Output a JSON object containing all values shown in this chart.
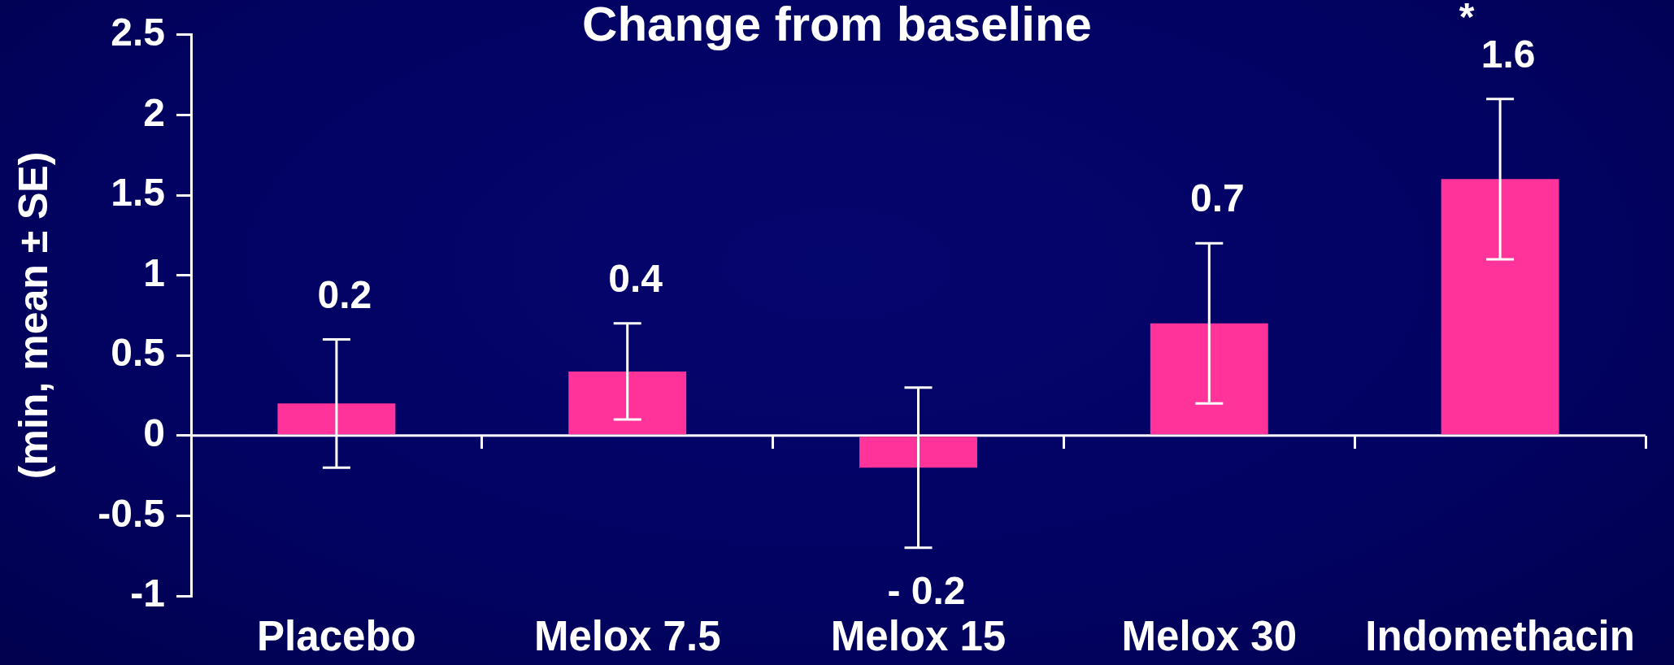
{
  "chart_data": {
    "type": "bar",
    "title": "Change from baseline",
    "ylabel": "(min, mean ± SE)",
    "categories": [
      "Placebo",
      "Melox 7.5",
      "Melox 15",
      "Melox 30",
      "Indomethacin"
    ],
    "values": [
      0.2,
      0.4,
      -0.2,
      0.7,
      1.6
    ],
    "errors": [
      0.4,
      0.3,
      0.5,
      0.5,
      0.5
    ],
    "value_labels": [
      "0.2",
      "0.4",
      "- 0.2",
      "0.7",
      "1.6"
    ],
    "color": "#ff3399",
    "ylim": [
      -1,
      2.5
    ],
    "yticks": [
      -1,
      -0.5,
      0,
      0.5,
      1,
      1.5,
      2,
      2.5
    ],
    "annotations": [
      "*"
    ]
  }
}
